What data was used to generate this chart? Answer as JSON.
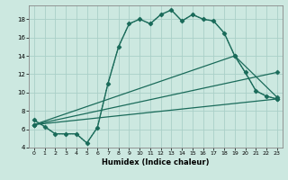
{
  "xlabel": "Humidex (Indice chaleur)",
  "ylabel": "",
  "background_color": "#cce8e0",
  "grid_color": "#aacfc8",
  "line_color": "#1a6b5a",
  "xlim": [
    -0.5,
    23.5
  ],
  "ylim": [
    4,
    19.5
  ],
  "yticks": [
    4,
    6,
    8,
    10,
    12,
    14,
    16,
    18
  ],
  "xticks": [
    0,
    1,
    2,
    3,
    4,
    5,
    6,
    7,
    8,
    9,
    10,
    11,
    12,
    13,
    14,
    15,
    16,
    17,
    18,
    19,
    20,
    21,
    22,
    23
  ],
  "series": [
    {
      "x": [
        0,
        1,
        2,
        3,
        4,
        5,
        6,
        7,
        8,
        9,
        10,
        11,
        12,
        13,
        14,
        15,
        16,
        17,
        18,
        19,
        20,
        21,
        22,
        23
      ],
      "y": [
        7.0,
        6.3,
        5.5,
        5.5,
        5.5,
        4.5,
        6.2,
        11.0,
        15.0,
        17.5,
        18.0,
        17.5,
        18.5,
        19.0,
        17.8,
        18.5,
        18.0,
        17.8,
        16.5,
        14.0,
        12.2,
        10.2,
        9.6,
        9.3
      ],
      "dotted": false,
      "marker": "D",
      "markersize": 2.5,
      "linewidth": 1.0
    },
    {
      "x": [
        0,
        2,
        3,
        4,
        5,
        6,
        7,
        8,
        9,
        10,
        11,
        12,
        13,
        14,
        15,
        16,
        17,
        18,
        19,
        20,
        21,
        22,
        23
      ],
      "y": [
        7.0,
        5.5,
        5.5,
        5.5,
        4.5,
        6.2,
        11.0,
        15.0,
        17.5,
        18.0,
        17.5,
        18.5,
        19.0,
        17.8,
        18.5,
        18.0,
        17.8,
        16.5,
        14.0,
        12.2,
        10.2,
        9.6,
        9.3
      ],
      "dotted": true,
      "marker": "D",
      "markersize": 2.0,
      "linewidth": 0.8
    },
    {
      "x": [
        0,
        23
      ],
      "y": [
        6.5,
        9.3
      ],
      "dotted": false,
      "marker": "D",
      "markersize": 2.5,
      "linewidth": 0.9
    },
    {
      "x": [
        0,
        23
      ],
      "y": [
        6.5,
        12.2
      ],
      "dotted": false,
      "marker": "D",
      "markersize": 2.5,
      "linewidth": 0.9
    },
    {
      "x": [
        0,
        19,
        23
      ],
      "y": [
        6.5,
        14.0,
        9.5
      ],
      "dotted": false,
      "marker": "D",
      "markersize": 2.5,
      "linewidth": 0.9
    }
  ]
}
